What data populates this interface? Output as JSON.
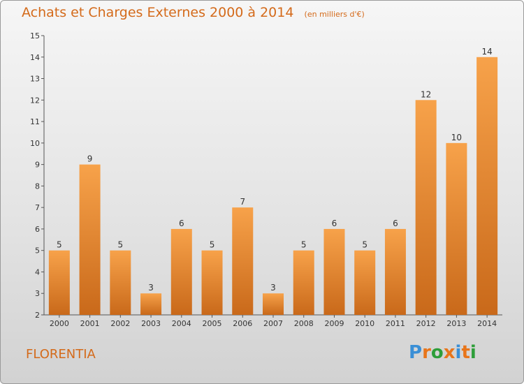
{
  "chart_data": {
    "type": "bar",
    "title": "Achats et Charges Externes 2000 à 2014",
    "subtitle": "(en milliers d'€)",
    "categories": [
      "2000",
      "2001",
      "2002",
      "2003",
      "2004",
      "2005",
      "2006",
      "2007",
      "2008",
      "2009",
      "2010",
      "2011",
      "2012",
      "2013",
      "2014"
    ],
    "values": [
      5,
      9,
      5,
      3,
      6,
      5,
      7,
      3,
      5,
      6,
      5,
      6,
      12,
      10,
      14
    ],
    "ylim": [
      2,
      15
    ],
    "yticks": [
      "2",
      "3",
      "4",
      "5",
      "6",
      "7",
      "8",
      "9",
      "10",
      "11",
      "12",
      "13",
      "14",
      "15"
    ],
    "grid": false,
    "bar_color": "#f0922e"
  },
  "footer": {
    "commune": "FLORENTIA",
    "logo": [
      {
        "ch": "P",
        "color": "#3a8fd6"
      },
      {
        "ch": "r",
        "color": "#e8751a"
      },
      {
        "ch": "o",
        "color": "#2e9e3a"
      },
      {
        "ch": "x",
        "color": "#e8751a"
      },
      {
        "ch": "i",
        "color": "#3a8fd6"
      },
      {
        "ch": "t",
        "color": "#e8751a"
      },
      {
        "ch": "i",
        "color": "#2e9e3a"
      }
    ]
  }
}
